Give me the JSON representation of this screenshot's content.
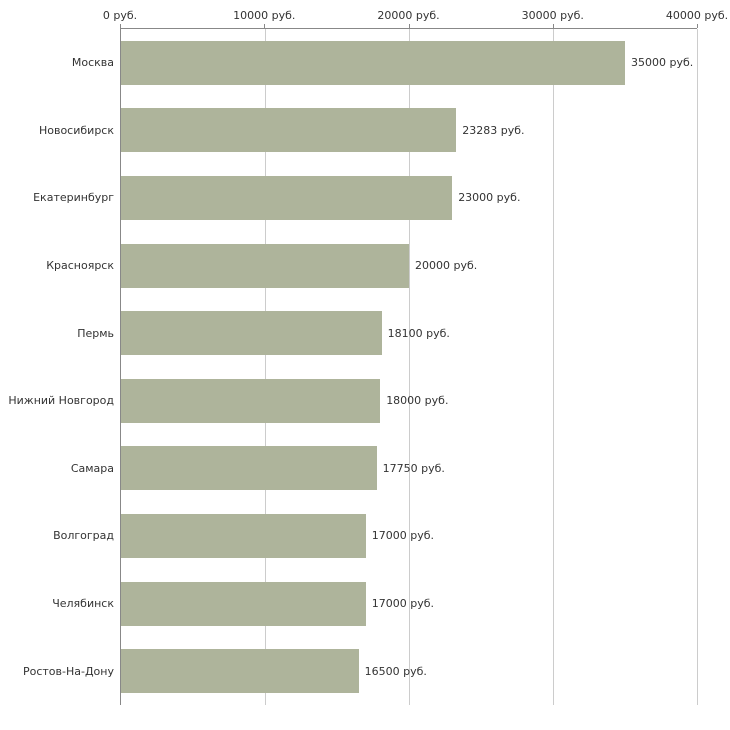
{
  "chart_data": {
    "type": "bar",
    "orientation": "horizontal",
    "title": "",
    "xlabel": "",
    "ylabel": "",
    "unit": "руб.",
    "xlim": [
      0,
      40000
    ],
    "grid": true,
    "legend": false,
    "x_ticks": [
      {
        "value": 0,
        "label": "0 руб."
      },
      {
        "value": 10000,
        "label": "10000 руб."
      },
      {
        "value": 20000,
        "label": "20000 руб."
      },
      {
        "value": 30000,
        "label": "30000 руб."
      },
      {
        "value": 40000,
        "label": "40000 руб."
      }
    ],
    "bars": [
      {
        "category": "Москва",
        "value": 35000,
        "label": "35000 руб."
      },
      {
        "category": "Новосибирск",
        "value": 23283,
        "label": "23283 руб."
      },
      {
        "category": "Екатеринбург",
        "value": 23000,
        "label": "23000 руб."
      },
      {
        "category": "Красноярск",
        "value": 20000,
        "label": "20000 руб."
      },
      {
        "category": "Пермь",
        "value": 18100,
        "label": "18100 руб."
      },
      {
        "category": "Нижний Новгород",
        "value": 18000,
        "label": "18000 руб."
      },
      {
        "category": "Самара",
        "value": 17750,
        "label": "17750 руб."
      },
      {
        "category": "Волгоград",
        "value": 17000,
        "label": "17000 руб."
      },
      {
        "category": "Челябинск",
        "value": 17000,
        "label": "17000 руб."
      },
      {
        "category": "Ростов-На-Дону",
        "value": 16500,
        "label": "16500 руб."
      }
    ],
    "colors": {
      "bar": "#aeb49b",
      "grid": "#cccccc",
      "axis": "#888888",
      "text": "#333333"
    }
  }
}
